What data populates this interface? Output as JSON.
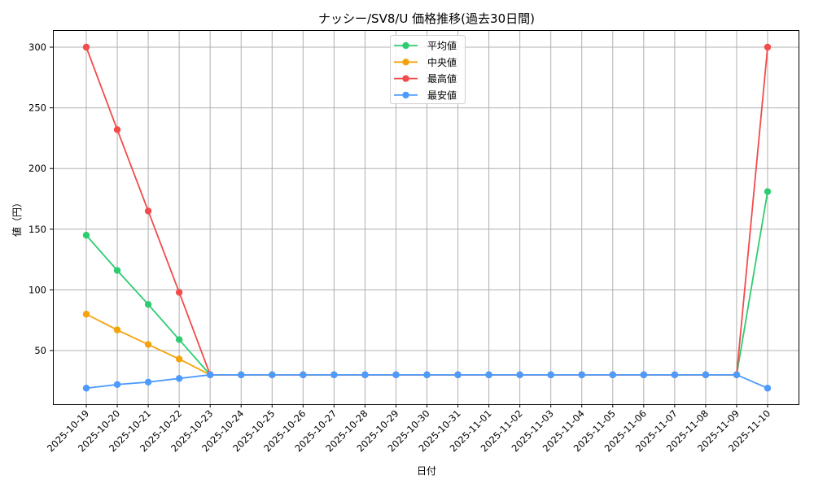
{
  "chart_data": {
    "type": "line",
    "title": "ナッシー/SV8/U 価格推移(過去30日間)",
    "xlabel": "日付",
    "ylabel": "値（円）",
    "ylim": [
      10,
      315
    ],
    "yticks": [
      50,
      100,
      150,
      200,
      250,
      300
    ],
    "grid": true,
    "legend_position": "upper center",
    "categories": [
      "2025-10-19",
      "2025-10-20",
      "2025-10-21",
      "2025-10-22",
      "2025-10-23",
      "2025-10-24",
      "2025-10-25",
      "2025-10-26",
      "2025-10-27",
      "2025-10-28",
      "2025-10-29",
      "2025-10-30",
      "2025-10-31",
      "2025-11-01",
      "2025-11-02",
      "2025-11-03",
      "2025-11-04",
      "2025-11-05",
      "2025-11-06",
      "2025-11-07",
      "2025-11-08",
      "2025-11-09",
      "2025-11-10"
    ],
    "series": [
      {
        "name": "平均値",
        "color": "#2ecc71",
        "values": [
          145,
          116,
          88,
          59,
          30,
          30,
          30,
          30,
          30,
          30,
          30,
          30,
          30,
          30,
          30,
          30,
          30,
          30,
          30,
          30,
          30,
          30,
          181
        ]
      },
      {
        "name": "中央値",
        "color": "#f5a30a",
        "values": [
          80,
          67,
          55,
          43,
          30,
          30,
          30,
          30,
          30,
          30,
          30,
          30,
          30,
          30,
          30,
          30,
          30,
          30,
          30,
          30,
          30,
          30,
          null
        ]
      },
      {
        "name": "最高値",
        "color": "#f24b4b",
        "values": [
          300,
          232,
          165,
          98,
          30,
          30,
          30,
          30,
          30,
          30,
          30,
          30,
          30,
          30,
          30,
          30,
          30,
          30,
          30,
          30,
          30,
          30,
          300
        ]
      },
      {
        "name": "最安値",
        "color": "#4d9bff",
        "values": [
          19,
          22,
          24,
          27,
          30,
          30,
          30,
          30,
          30,
          30,
          30,
          30,
          30,
          30,
          30,
          30,
          30,
          30,
          30,
          30,
          30,
          30,
          19
        ]
      }
    ]
  }
}
